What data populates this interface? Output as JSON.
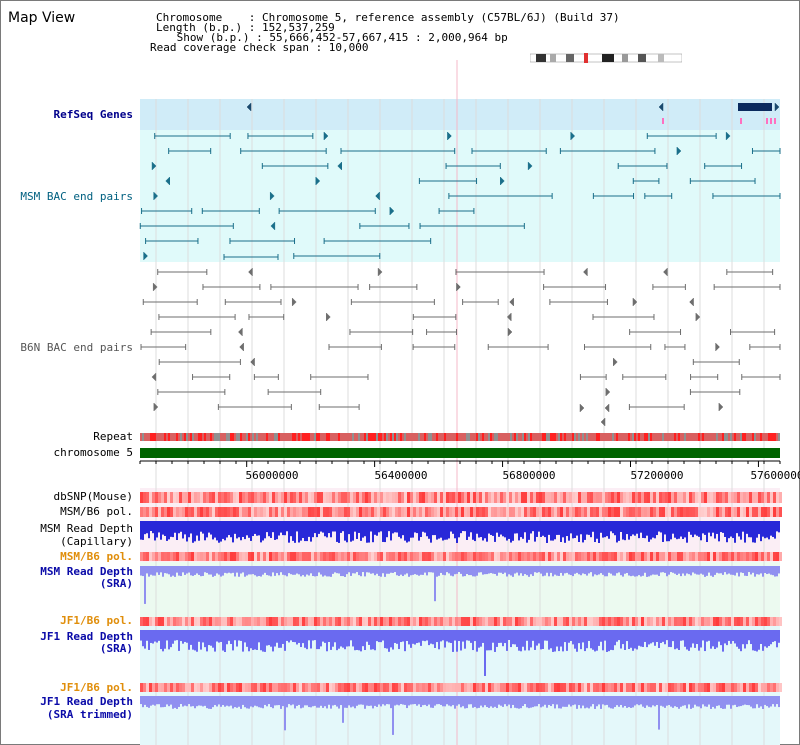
{
  "window": {
    "title": "Map View"
  },
  "info": {
    "chromosome": "Chromosome    : Chromosome 5, reference assembly (C57BL/6J) (Build 37)",
    "length": "Length (b.p.) : 152,537,259",
    "show": " Show (b.p.) : 55,666,452-57,667,415 : 2,000,964 bp",
    "coverage": "Read coverage check span : 10,000"
  },
  "tracks": {
    "refseq": "RefSeq Genes",
    "msm_bac": "MSM BAC end pairs",
    "b6n_bac": "B6N BAC end pairs",
    "repeat": "Repeat",
    "chromosome": "chromosome 5",
    "dbsnp": "dbSNP(Mouse)",
    "msm_b6_pol": "MSM/B6 pol.",
    "msm_depth_cap_1": "MSM Read Depth",
    "msm_depth_cap_2": "(Capillary)",
    "msm_b6_pol_2": "MSM/B6 pol.",
    "msm_depth_sra_1": "MSM Read Depth",
    "msm_depth_sra_2": "(SRA)",
    "jf1_b6_pol": "JF1/B6 pol.",
    "jf1_depth_1": "JF1 Read Depth",
    "jf1_depth_2": "(SRA)",
    "jf1_b6_pol_2": "JF1/B6 pol.",
    "jf1_trim_1": "JF1 Read Depth",
    "jf1_trim_2": "(SRA trimmed)"
  },
  "axis": {
    "ticks": [
      "56000000",
      "56400000",
      "56800000",
      "57200000",
      "57600000"
    ],
    "tick_values": [
      56000000,
      56400000,
      56800000,
      57200000,
      57600000
    ],
    "range": [
      55666452,
      57667415
    ]
  },
  "colors": {
    "refseq_bg": "#d0ecf8",
    "bac_bg": "#e0fafa",
    "teal": "#1a6f8a",
    "gray": "#6e6e6e",
    "chrom": "#006400",
    "repeat": "#e02020",
    "depth_cap": "#2828d8",
    "depth_sra": "#9090f0",
    "depth_jf1": "#6a6af0"
  }
}
